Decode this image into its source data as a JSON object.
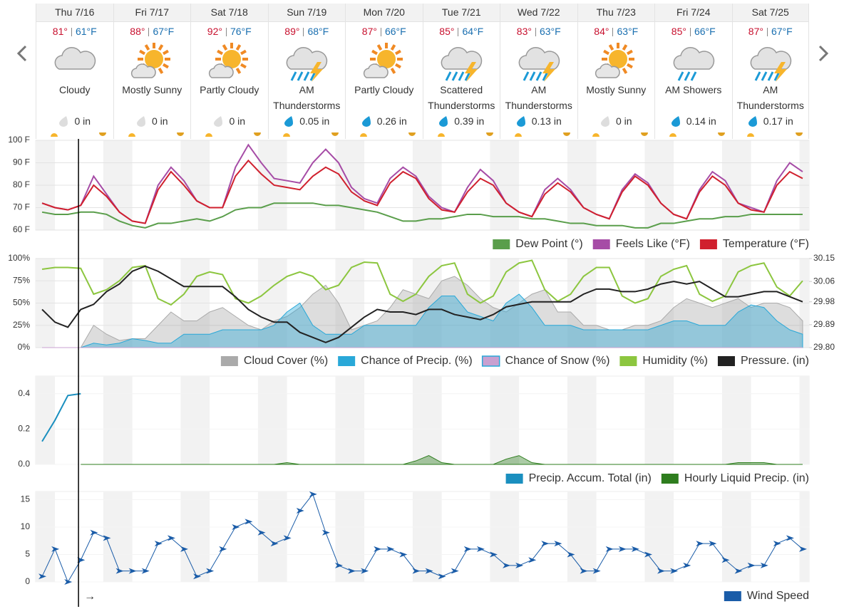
{
  "forecast": {
    "days": [
      {
        "day": "Thu 7/16",
        "hi": "81°",
        "lo": "61°F",
        "condition": "Cloudy",
        "precip": "0 in"
      },
      {
        "day": "Fri 7/17",
        "hi": "88°",
        "lo": "67°F",
        "condition": "Mostly Sunny",
        "precip": "0 in"
      },
      {
        "day": "Sat 7/18",
        "hi": "92°",
        "lo": "76°F",
        "condition": "Partly Cloudy",
        "precip": "0 in"
      },
      {
        "day": "Sun 7/19",
        "hi": "89°",
        "lo": "68°F",
        "condition": "AM Thunderstorms",
        "precip": "0.05 in"
      },
      {
        "day": "Mon 7/20",
        "hi": "87°",
        "lo": "66°F",
        "condition": "Partly Cloudy",
        "precip": "0.26 in"
      },
      {
        "day": "Tue 7/21",
        "hi": "85°",
        "lo": "64°F",
        "condition": "Scattered Thunderstorms",
        "precip": "0.39 in"
      },
      {
        "day": "Wed 7/22",
        "hi": "83°",
        "lo": "63°F",
        "condition": "AM Thunderstorms",
        "precip": "0.13 in"
      },
      {
        "day": "Thu 7/23",
        "hi": "84°",
        "lo": "63°F",
        "condition": "Mostly Sunny",
        "precip": "0 in"
      },
      {
        "day": "Fri 7/24",
        "hi": "85°",
        "lo": "66°F",
        "condition": "AM Showers",
        "precip": "0.14 in"
      },
      {
        "day": "Sat 7/25",
        "hi": "87°",
        "lo": "67°F",
        "condition": "AM Thunderstorms",
        "precip": "0.17 in"
      }
    ]
  },
  "now_arrow": "→",
  "chart_data": [
    {
      "type": "line",
      "ylim": [
        60,
        100
      ],
      "grid": true,
      "yticks": [
        {
          "value": 60,
          "label": "60 F"
        },
        {
          "value": 70,
          "label": "70 F"
        },
        {
          "value": 80,
          "label": "80 F"
        },
        {
          "value": 90,
          "label": "90 F"
        },
        {
          "value": 100,
          "label": "100 F"
        }
      ],
      "series": [
        {
          "name": "Dew Point (°)",
          "color": "#5a9e4b",
          "values": [
            68,
            67,
            67,
            68,
            68,
            67,
            64,
            62,
            61,
            63,
            63,
            64,
            65,
            64,
            66,
            69,
            70,
            70,
            72,
            72,
            72,
            72,
            71,
            71,
            70,
            69,
            68,
            66,
            64,
            64,
            65,
            65,
            66,
            67,
            67,
            66,
            66,
            66,
            65,
            65,
            64,
            63,
            63,
            62,
            62,
            62,
            61,
            61,
            63,
            63,
            64,
            65,
            65,
            66,
            66,
            67,
            67,
            67,
            67,
            67
          ]
        },
        {
          "name": "Feels Like (°F)",
          "color": "#a64ca6",
          "values": [
            72,
            70,
            69,
            71,
            84,
            76,
            68,
            64,
            63,
            80,
            88,
            82,
            73,
            70,
            70,
            88,
            98,
            90,
            83,
            82,
            81,
            90,
            96,
            90,
            79,
            74,
            72,
            83,
            88,
            84,
            75,
            70,
            68,
            79,
            87,
            82,
            72,
            68,
            66,
            78,
            83,
            78,
            70,
            67,
            65,
            78,
            85,
            81,
            72,
            67,
            65,
            78,
            86,
            82,
            72,
            70,
            68,
            82,
            90,
            86
          ]
        },
        {
          "name": "Temperature (°F)",
          "color": "#d0202e",
          "values": [
            72,
            70,
            69,
            71,
            80,
            75,
            68,
            64,
            63,
            78,
            86,
            80,
            73,
            70,
            70,
            84,
            91,
            85,
            80,
            79,
            78,
            84,
            88,
            85,
            77,
            73,
            71,
            81,
            86,
            83,
            74,
            69,
            68,
            77,
            83,
            80,
            72,
            68,
            66,
            76,
            81,
            77,
            70,
            67,
            65,
            77,
            84,
            80,
            72,
            67,
            65,
            77,
            84,
            80,
            72,
            69,
            68,
            80,
            86,
            83
          ]
        }
      ]
    },
    {
      "type": "line",
      "ylim": [
        0,
        100
      ],
      "grid": true,
      "y2lim": [
        29.8,
        30.15
      ],
      "yticks": [
        {
          "value": 0,
          "label": "0%"
        },
        {
          "value": 25,
          "label": "25%"
        },
        {
          "value": 50,
          "label": "50%"
        },
        {
          "value": 75,
          "label": "75%"
        },
        {
          "value": 100,
          "label": "100%"
        }
      ],
      "y2ticks": [
        {
          "value": 29.8,
          "label": "29.80"
        },
        29.89,
        29.98,
        30.06,
        30.15
      ],
      "series": [
        {
          "name": "Cloud Cover (%)",
          "color": "#aaaaaa",
          "area": true,
          "values": [
            0,
            0,
            0,
            0,
            25,
            15,
            8,
            10,
            10,
            25,
            40,
            30,
            30,
            40,
            45,
            35,
            25,
            20,
            30,
            35,
            45,
            60,
            70,
            50,
            20,
            25,
            30,
            45,
            65,
            60,
            55,
            75,
            80,
            70,
            55,
            45,
            40,
            50,
            60,
            65,
            40,
            40,
            25,
            25,
            20,
            20,
            25,
            25,
            30,
            45,
            55,
            50,
            45,
            50,
            55,
            45,
            50,
            50,
            45,
            30
          ]
        },
        {
          "name": "Chance of Precip. (%)",
          "color": "#29a8d8",
          "area": true,
          "values": [
            0,
            0,
            0,
            0,
            5,
            3,
            5,
            10,
            8,
            5,
            5,
            15,
            15,
            15,
            20,
            20,
            20,
            20,
            25,
            40,
            50,
            25,
            15,
            15,
            15,
            25,
            25,
            25,
            25,
            25,
            45,
            58,
            58,
            40,
            35,
            30,
            50,
            60,
            45,
            25,
            25,
            25,
            20,
            20,
            20,
            20,
            20,
            20,
            25,
            30,
            30,
            25,
            25,
            25,
            40,
            48,
            45,
            30,
            20,
            15
          ]
        },
        {
          "name": "Chance of Snow (%)",
          "color": "#c9a0d0",
          "area": true,
          "values": [
            0,
            0,
            0,
            0,
            0,
            0,
            0,
            0,
            0,
            0,
            0,
            0,
            0,
            0,
            0,
            0,
            0,
            0,
            0,
            0,
            0,
            0,
            0,
            0,
            0,
            0,
            0,
            0,
            0,
            0,
            0,
            0,
            0,
            0,
            0,
            0,
            0,
            0,
            0,
            0,
            0,
            0,
            0,
            0,
            0,
            0,
            0,
            0,
            0,
            0,
            0,
            0,
            0,
            0,
            0,
            0,
            0,
            0,
            0,
            0
          ]
        },
        {
          "name": "Humidity (%)",
          "color": "#8cc63f",
          "values": [
            88,
            90,
            90,
            89,
            60,
            65,
            75,
            90,
            92,
            55,
            48,
            60,
            80,
            85,
            82,
            55,
            50,
            58,
            70,
            80,
            85,
            80,
            65,
            70,
            90,
            96,
            95,
            60,
            52,
            60,
            80,
            92,
            95,
            60,
            50,
            58,
            85,
            95,
            98,
            65,
            52,
            60,
            80,
            90,
            90,
            58,
            50,
            55,
            80,
            88,
            92,
            60,
            52,
            58,
            85,
            92,
            95,
            68,
            58,
            75
          ]
        },
        {
          "name": "Pressure. (in)",
          "color": "#222222",
          "axis": "y2",
          "values": [
            29.95,
            29.9,
            29.88,
            29.95,
            29.97,
            30.02,
            30.05,
            30.1,
            30.12,
            30.1,
            30.07,
            30.04,
            30.04,
            30.04,
            30.04,
            30.0,
            29.95,
            29.92,
            29.9,
            29.9,
            29.86,
            29.84,
            29.82,
            29.84,
            29.88,
            29.92,
            29.95,
            29.94,
            29.94,
            29.93,
            29.95,
            29.95,
            29.93,
            29.92,
            29.91,
            29.93,
            29.96,
            29.97,
            29.98,
            29.98,
            29.98,
            29.98,
            30.01,
            30.03,
            30.03,
            30.02,
            30.02,
            30.03,
            30.05,
            30.06,
            30.05,
            30.06,
            30.03,
            30.0,
            30.0,
            30.01,
            30.02,
            30.02,
            30.0,
            29.98
          ]
        }
      ]
    },
    {
      "type": "line",
      "ylim": [
        0,
        0.5
      ],
      "grid": false,
      "yticks": [
        {
          "value": 0,
          "label": "0.0"
        },
        0.2,
        0.4
      ],
      "series": [
        {
          "name": "Precip. Accum. Total (in)",
          "color": "#1a8fbf",
          "values": [
            0.13,
            0.25,
            0.39,
            0.4,
            null,
            null,
            null,
            null,
            null,
            null,
            null,
            null,
            null,
            null,
            null,
            null,
            null,
            null,
            null,
            null,
            null,
            null,
            null,
            null,
            null,
            null,
            null,
            null,
            null,
            null,
            null,
            null,
            null,
            null,
            null,
            null,
            null,
            null,
            null,
            null,
            null,
            null,
            null,
            null,
            null,
            null,
            null,
            null,
            null,
            null,
            null,
            null,
            null,
            null,
            null,
            null,
            null,
            null,
            null,
            null
          ]
        },
        {
          "name": "Hourly Liquid Precip. (in)",
          "color": "#2e7d1e",
          "area": true,
          "values": [
            null,
            null,
            null,
            0,
            0,
            0,
            0,
            0,
            0,
            0,
            0,
            0,
            0,
            0,
            0,
            0,
            0,
            0,
            0,
            0.01,
            0,
            0,
            0,
            0,
            0,
            0,
            0,
            0,
            0,
            0.02,
            0.05,
            0.01,
            0,
            0,
            0,
            0,
            0.03,
            0.05,
            0.01,
            0,
            0,
            0,
            0,
            0,
            0,
            0,
            0,
            0,
            0,
            0,
            0,
            0,
            0,
            0,
            0.01,
            0.01,
            0.01,
            0,
            0,
            0
          ]
        }
      ]
    },
    {
      "type": "line",
      "ylim": [
        0,
        16.5
      ],
      "grid": false,
      "markers": true,
      "yticks": [
        0,
        5,
        10,
        15
      ],
      "series": [
        {
          "name": "Wind Speed",
          "color": "#1a5ca8",
          "values": [
            1,
            6,
            0,
            4,
            9,
            8,
            2,
            2,
            2,
            7,
            8,
            6,
            1,
            2,
            6,
            10,
            11,
            9,
            7,
            8,
            13,
            16,
            9,
            3,
            2,
            2,
            6,
            6,
            5,
            2,
            2,
            1,
            2,
            6,
            6,
            5,
            3,
            3,
            4,
            7,
            7,
            5,
            2,
            2,
            6,
            6,
            6,
            5,
            2,
            2,
            3,
            7,
            7,
            4,
            2,
            3,
            3,
            7,
            8,
            6
          ]
        }
      ]
    }
  ]
}
